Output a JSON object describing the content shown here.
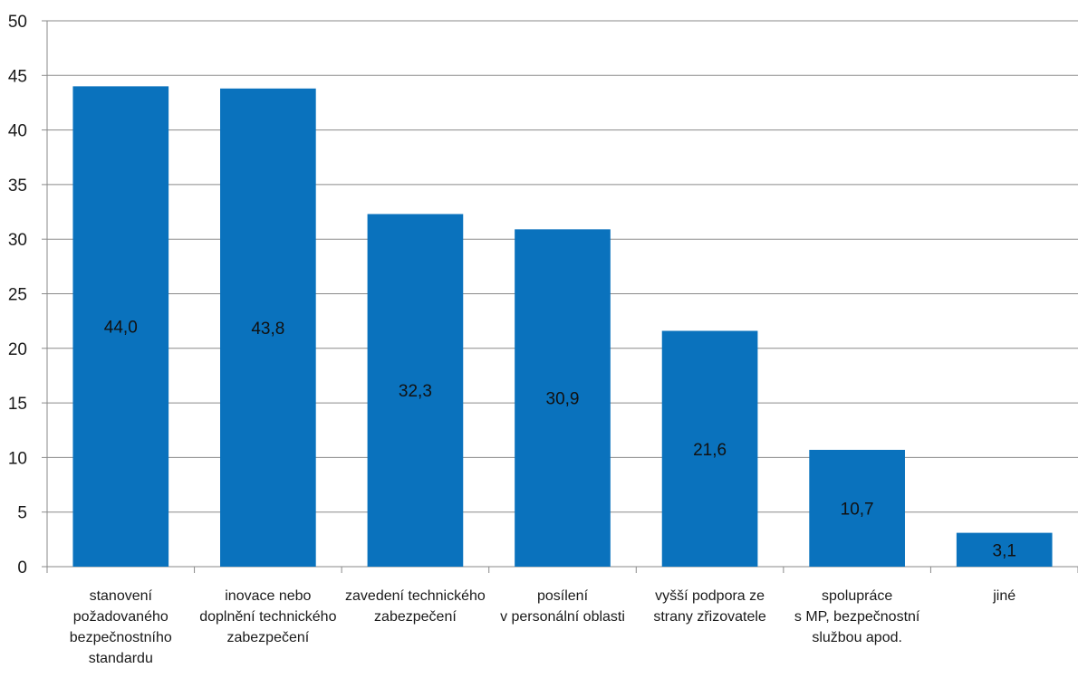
{
  "chart_data": {
    "type": "bar",
    "title": "",
    "xlabel": "",
    "ylabel": "",
    "ylim": [
      0,
      50
    ],
    "yticks": [
      0,
      5,
      10,
      15,
      20,
      25,
      30,
      35,
      40,
      45,
      50
    ],
    "grid": true,
    "legend": "none",
    "bar_color": "#0a72bd",
    "categories": [
      [
        "stanovení",
        "požadovaného",
        "bezpečnostního",
        "standardu"
      ],
      [
        "inovace nebo",
        "doplnění technického",
        "zabezpečení"
      ],
      [
        "zavedení technického",
        "zabezpečení"
      ],
      [
        "posílení",
        "v personální oblasti"
      ],
      [
        "vyšší podpora ze",
        "strany zřizovatele"
      ],
      [
        "spolupráce",
        "s MP, bezpečnostní",
        "službou apod."
      ],
      [
        "jiné"
      ]
    ],
    "values": [
      44.0,
      43.8,
      32.3,
      30.9,
      21.6,
      10.7,
      3.1
    ],
    "data_labels": [
      "44,0",
      "43,8",
      "32,3",
      "30,9",
      "21,6",
      "10,7",
      "3,1"
    ]
  }
}
